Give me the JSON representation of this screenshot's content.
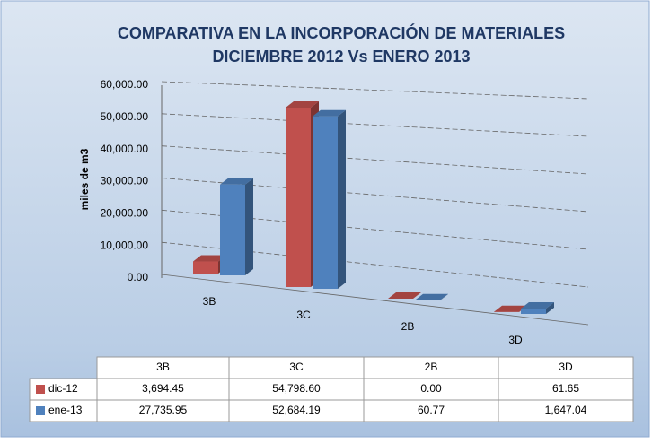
{
  "chart_data": {
    "type": "bar3d",
    "title": "COMPARATIVA EN LA INCORPORACIÓN DE MATERIALES",
    "subtitle": "DICIEMBRE 2012 Vs ENERO 2013",
    "y_label": "miles de m3",
    "categories": [
      "3B",
      "3C",
      "2B",
      "3D"
    ],
    "series": [
      {
        "name": "dic-12",
        "color": "#c0504d",
        "values": [
          3694.45,
          54798.6,
          0.0,
          61.65
        ],
        "value_labels": [
          "3,694.45",
          "54,798.60",
          "0.00",
          "61.65"
        ]
      },
      {
        "name": "ene-13",
        "color": "#4f81bd",
        "values": [
          27735.95,
          52684.19,
          60.77,
          1647.04
        ],
        "value_labels": [
          "27,735.95",
          "52,684.19",
          "60.77",
          "1,647.04"
        ]
      }
    ],
    "ylim": [
      0,
      60000
    ],
    "yticks": [
      {
        "value": 0,
        "label": "0.00"
      },
      {
        "value": 10000,
        "label": "10,000.00"
      },
      {
        "value": 20000,
        "label": "20,000.00"
      },
      {
        "value": 30000,
        "label": "30,000.00"
      },
      {
        "value": 40000,
        "label": "40,000.00"
      },
      {
        "value": 50000,
        "label": "50,000.00"
      },
      {
        "value": 60000,
        "label": "60,000.00"
      }
    ],
    "grid": true,
    "legend": "table"
  }
}
